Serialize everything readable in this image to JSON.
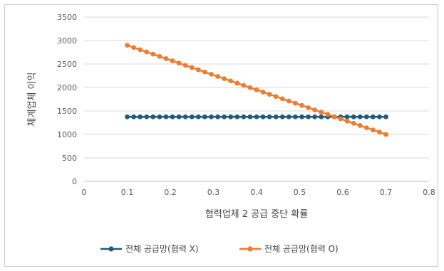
{
  "chart_data": {
    "type": "line",
    "title": "",
    "xlabel": "협력업체 2 공급 중단 확률",
    "ylabel": "체계업체 이익",
    "xlim": [
      0,
      0.8
    ],
    "ylim": [
      0,
      3500
    ],
    "xticks": [
      "0",
      "0.1",
      "0.2",
      "0.3",
      "0.4",
      "0.5",
      "0.6",
      "0.7",
      "0.8"
    ],
    "yticks": [
      "0",
      "500",
      "1000",
      "1500",
      "2000",
      "2500",
      "3000",
      "3500"
    ],
    "grid": true,
    "legend_position": "bottom",
    "x_points": [
      0.1,
      0.115,
      0.13,
      0.145,
      0.16,
      0.175,
      0.19,
      0.205,
      0.22,
      0.235,
      0.25,
      0.265,
      0.28,
      0.295,
      0.31,
      0.325,
      0.34,
      0.355,
      0.37,
      0.385,
      0.4,
      0.415,
      0.43,
      0.445,
      0.46,
      0.475,
      0.49,
      0.505,
      0.52,
      0.535,
      0.55,
      0.565,
      0.58,
      0.595,
      0.61,
      0.625,
      0.64,
      0.655,
      0.67,
      0.685,
      0.7
    ],
    "series": [
      {
        "name": "전체 공급망(협력 X)",
        "color": "#1f5c7a",
        "values": [
          1375,
          1375,
          1375,
          1375,
          1375,
          1375,
          1375,
          1375,
          1375,
          1375,
          1375,
          1375,
          1375,
          1375,
          1375,
          1375,
          1375,
          1375,
          1375,
          1375,
          1375,
          1375,
          1375,
          1375,
          1375,
          1375,
          1375,
          1375,
          1375,
          1375,
          1375,
          1375,
          1375,
          1375,
          1375,
          1375,
          1375,
          1375,
          1375,
          1375,
          1375
        ]
      },
      {
        "name": "전체 공급망(협력 O)",
        "color": "#ed7d31",
        "values": [
          2900,
          2852,
          2805,
          2758,
          2710,
          2662,
          2615,
          2568,
          2520,
          2472,
          2425,
          2378,
          2330,
          2282,
          2235,
          2188,
          2140,
          2092,
          2045,
          1998,
          1950,
          1902,
          1855,
          1808,
          1760,
          1712,
          1665,
          1618,
          1570,
          1522,
          1475,
          1428,
          1380,
          1332,
          1285,
          1238,
          1190,
          1142,
          1095,
          1048,
          1000
        ]
      }
    ]
  }
}
